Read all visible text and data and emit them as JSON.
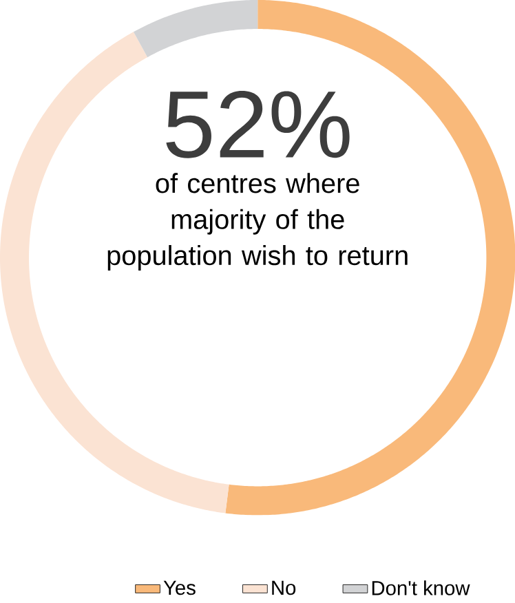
{
  "chart_data": {
    "type": "donut",
    "title": "52%",
    "subtitle": "of centres where majority of the population wish to return",
    "categories": [
      "Yes",
      "No",
      "Don't know"
    ],
    "values": [
      52,
      40,
      8
    ],
    "colors": [
      "#f9b97a",
      "#fbe3d3",
      "#d2d3d5"
    ],
    "legend": "bottom"
  }
}
